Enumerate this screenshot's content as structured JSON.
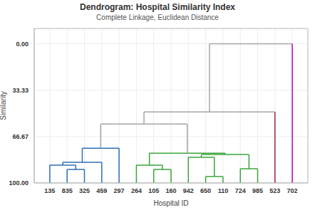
{
  "chart_data": {
    "type": "dendrogram",
    "title": "Dendrogram: Hospital Similarity Index",
    "subtitle": "Complete Linkage, Euclidean Distance",
    "x_label": "Hospital ID",
    "y_label": "Similarity",
    "categories": [
      "135",
      "835",
      "325",
      "459",
      "297",
      "264",
      "105",
      "160",
      "942",
      "650",
      "110",
      "724",
      "985",
      "523",
      "702"
    ],
    "ylim": [
      -11,
      100
    ],
    "yticks": [
      {
        "value": 0,
        "label": "0.00"
      },
      33.33,
      66.67,
      {
        "value": 100,
        "label": "100.00"
      }
    ],
    "grid": true,
    "tree": {
      "similarity": 0,
      "color": "#a6a6a6",
      "children": [
        {
          "similarity": 49.0,
          "color": "#a6a6a6",
          "children": [
            {
              "similarity": 57.7,
              "color": "#a6a6a6",
              "children": [
                {
                  "similarity": 75.0,
                  "color": "#2d6fb5",
                  "children": [
                    {
                      "similarity": 85.2,
                      "color": "#2d6fb5",
                      "children": [
                        {
                          "similarity": 87.2,
                          "color": "#2d6fb5",
                          "children": [
                            "135",
                            {
                              "similarity": 90.3,
                              "color": "#2d6fb5",
                              "children": [
                                "835",
                                "325"
                              ]
                            }
                          ]
                        },
                        "459"
                      ]
                    },
                    "297"
                  ]
                },
                {
                  "similarity": 78.6,
                  "color": "#3aa53a",
                  "children": [
                    {
                      "similarity": 87.2,
                      "color": "#3aa53a",
                      "children": [
                        "264",
                        {
                          "similarity": 90.3,
                          "color": "#3aa53a",
                          "children": [
                            "105",
                            "160"
                          ]
                        }
                      ]
                    },
                    {
                      "similarity": 79.6,
                      "color": "#3aa53a",
                      "children": [
                        {
                          "similarity": 81.6,
                          "color": "#3aa53a",
                          "children": [
                            "942",
                            {
                              "similarity": 95.4,
                              "color": "#3aa53a",
                              "children": [
                                "650",
                                "110"
                              ]
                            }
                          ]
                        },
                        {
                          "similarity": 89.8,
                          "color": "#3aa53a",
                          "children": [
                            "724",
                            "985"
                          ]
                        }
                      ]
                    }
                  ]
                }
              ]
            },
            {
              "label": "523",
              "color": "#a4243b"
            }
          ]
        },
        {
          "label": "702",
          "color": "#c000c0"
        }
      ]
    }
  }
}
